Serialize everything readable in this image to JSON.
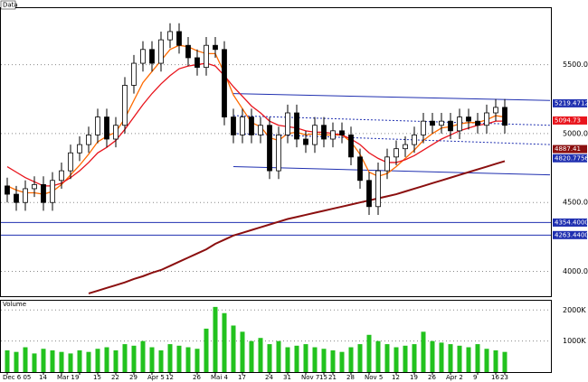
{
  "chart_data": {
    "type": "candlestick",
    "title": "Data",
    "open": [
      4620,
      4560,
      4500,
      4600,
      4630,
      4500,
      4660,
      4730,
      4860,
      4920,
      4990,
      5120,
      4960,
      5060,
      5350,
      5510,
      5610,
      5510,
      5680,
      5740,
      5640,
      5550,
      5480,
      5640,
      5610,
      5120,
      4990,
      5120,
      4990,
      5060,
      4730,
      4990,
      5150,
      4960,
      4920,
      5060,
      4960,
      5020,
      4990,
      4830,
      4660,
      4470,
      4730,
      4830,
      4890,
      4920,
      4990,
      5090,
      5060,
      5090,
      5020,
      5120,
      5090,
      5060,
      5150,
      5190
    ],
    "high": [
      4680,
      4620,
      4660,
      4690,
      4690,
      4720,
      4790,
      4920,
      4980,
      5050,
      5180,
      5180,
      5120,
      5410,
      5570,
      5670,
      5670,
      5740,
      5800,
      5800,
      5700,
      5610,
      5700,
      5700,
      5670,
      5180,
      5180,
      5180,
      5120,
      5120,
      5050,
      5210,
      5210,
      5020,
      5120,
      5120,
      5080,
      5080,
      5050,
      4890,
      4720,
      4790,
      4890,
      4950,
      4980,
      5050,
      5150,
      5150,
      5150,
      5150,
      5180,
      5180,
      5150,
      5210,
      5250,
      5250
    ],
    "low": [
      4500,
      4440,
      4440,
      4540,
      4440,
      4440,
      4600,
      4670,
      4800,
      4860,
      4930,
      4900,
      4900,
      5000,
      5290,
      5450,
      5450,
      5450,
      5620,
      5580,
      5490,
      5420,
      5420,
      5550,
      5060,
      4930,
      4930,
      4930,
      4930,
      4670,
      4670,
      4930,
      4900,
      4860,
      4860,
      4900,
      4900,
      4930,
      4770,
      4600,
      4410,
      4410,
      4670,
      4770,
      4830,
      4860,
      4930,
      5000,
      5000,
      4960,
      4960,
      5030,
      5000,
      5000,
      5090,
      5000
    ],
    "close": [
      4560,
      4500,
      4600,
      4630,
      4500,
      4660,
      4730,
      4860,
      4920,
      4990,
      5120,
      4960,
      5060,
      5350,
      5510,
      5610,
      5510,
      5680,
      5740,
      5640,
      5550,
      5480,
      5640,
      5610,
      5120,
      4990,
      5120,
      4990,
      5060,
      4730,
      4990,
      5150,
      4960,
      4920,
      5060,
      4960,
      5020,
      4990,
      4830,
      4660,
      4470,
      4730,
      4830,
      4890,
      4920,
      4990,
      5090,
      5060,
      5090,
      5020,
      5120,
      5090,
      5060,
      5150,
      5190,
      5060
    ],
    "up_color": "#ffffff",
    "down_color": "#000000",
    "lines": [
      {
        "color": "#ff6a00",
        "values": [
          4620,
          4590,
          4570,
          4570,
          4560,
          4580,
          4630,
          4700,
          4770,
          4850,
          4940,
          4980,
          5010,
          5110,
          5240,
          5370,
          5450,
          5530,
          5610,
          5640,
          5630,
          5600,
          5580,
          5580,
          5440,
          5280,
          5180,
          5080,
          5050,
          4970,
          4950,
          5000,
          5010,
          4990,
          5000,
          4990,
          4990,
          4990,
          4940,
          4850,
          4720,
          4690,
          4710,
          4760,
          4820,
          4880,
          4950,
          5000,
          5040,
          5050,
          5070,
          5080,
          5080,
          5100,
          5130,
          5120
        ]
      },
      {
        "color": "#e8141c",
        "values": [
          4760,
          4720,
          4680,
          4650,
          4620,
          4620,
          4640,
          4680,
          4730,
          4790,
          4860,
          4900,
          4950,
          5030,
          5120,
          5210,
          5290,
          5360,
          5420,
          5470,
          5490,
          5500,
          5510,
          5490,
          5420,
          5340,
          5270,
          5200,
          5150,
          5090,
          5060,
          5050,
          5040,
          5020,
          5010,
          5010,
          5000,
          4990,
          4960,
          4920,
          4860,
          4820,
          4790,
          4790,
          4810,
          4840,
          4880,
          4920,
          4960,
          4990,
          5020,
          5040,
          5060,
          5070,
          5090,
          5090
        ]
      },
      {
        "color": "#8b0f0f",
        "values": [
          null,
          null,
          null,
          null,
          null,
          null,
          null,
          null,
          null,
          3840,
          3860,
          3880,
          3900,
          3920,
          3945,
          3965,
          3990,
          4010,
          4040,
          4070,
          4100,
          4130,
          4160,
          4200,
          4230,
          4260,
          4280,
          4300,
          4320,
          4340,
          4360,
          4380,
          4395,
          4410,
          4425,
          4440,
          4455,
          4470,
          4485,
          4500,
          4515,
          4530,
          4545,
          4560,
          4580,
          4600,
          4620,
          4640,
          4660,
          4680,
          4700,
          4720,
          4740,
          4760,
          4780,
          4800
        ]
      }
    ],
    "trend_lines": [
      {
        "x": [
          25,
          60
        ],
        "values": [
          5290,
          5240
        ],
        "color": "#1f2fb0",
        "dashed": false
      },
      {
        "x": [
          25,
          60
        ],
        "values": [
          5130,
          5060
        ],
        "color": "#1f2fb0",
        "dashed": true
      },
      {
        "x": [
          25,
          60
        ],
        "values": [
          5000,
          4920
        ],
        "color": "#1f2fb0",
        "dashed": true
      },
      {
        "x": [
          25,
          60
        ],
        "values": [
          4760,
          4700
        ],
        "color": "#1f2fb0",
        "dashed": false
      }
    ],
    "horizontal_lines": [
      {
        "value": 4354.4,
        "label": "4354.4000",
        "color": "#1f2fb0"
      },
      {
        "value": 4263.44,
        "label": "4263.4400",
        "color": "#1f2fb0"
      }
    ],
    "price_tags": [
      {
        "value": 5219.4712,
        "color": "#1f2fb0"
      },
      {
        "value": 5094.73,
        "color": "#e8141c"
      },
      {
        "value": 4887.41,
        "color": "#8b0f0f"
      },
      {
        "value": 4820.7756,
        "color": "#1f2fb0"
      }
    ],
    "ylim": [
      3820,
      5910
    ],
    "yticks": [
      {
        "value": 4000,
        "label": "4000.00"
      },
      {
        "value": 4500,
        "label": "4500.00"
      },
      {
        "value": 5000,
        "label": "5000.00"
      },
      {
        "value": 5500,
        "label": "5500.00"
      }
    ],
    "grid": true,
    "volume": {
      "title": "Volume",
      "color": "#22c21e",
      "values": [
        700,
        650,
        800,
        600,
        750,
        700,
        650,
        600,
        700,
        650,
        750,
        800,
        700,
        900,
        850,
        1000,
        800,
        700,
        900,
        850,
        800,
        750,
        1400,
        2100,
        1900,
        1500,
        1300,
        1000,
        1100,
        900,
        1000,
        800,
        850,
        900,
        800,
        750,
        700,
        650,
        800,
        900,
        1200,
        1000,
        900,
        800,
        850,
        900,
        1300,
        1000,
        950,
        900,
        850,
        800,
        900,
        750,
        700,
        650
      ],
      "ylim": [
        0,
        2300
      ],
      "yticks": [
        {
          "value": 1000,
          "label": "1000K"
        },
        {
          "value": 2000,
          "label": "2000K"
        }
      ]
    },
    "categories": [
      "Dec 6 05",
      null,
      null,
      null,
      "14",
      null,
      "Mar 1",
      null,
      "9",
      null,
      "15",
      null,
      "22",
      null,
      "29",
      null,
      "Apr 5",
      null,
      "12",
      null,
      null,
      "26",
      null,
      "Mai 4",
      null,
      null,
      "17",
      null,
      null,
      "24",
      null,
      "31",
      null,
      "Nov 7",
      null,
      "15",
      "21",
      null,
      "28",
      null,
      "Nov 5",
      null,
      null,
      "12",
      null,
      "19",
      null,
      "26",
      null,
      "Apr 2",
      null,
      null,
      "9",
      null,
      "16",
      "23"
    ]
  }
}
